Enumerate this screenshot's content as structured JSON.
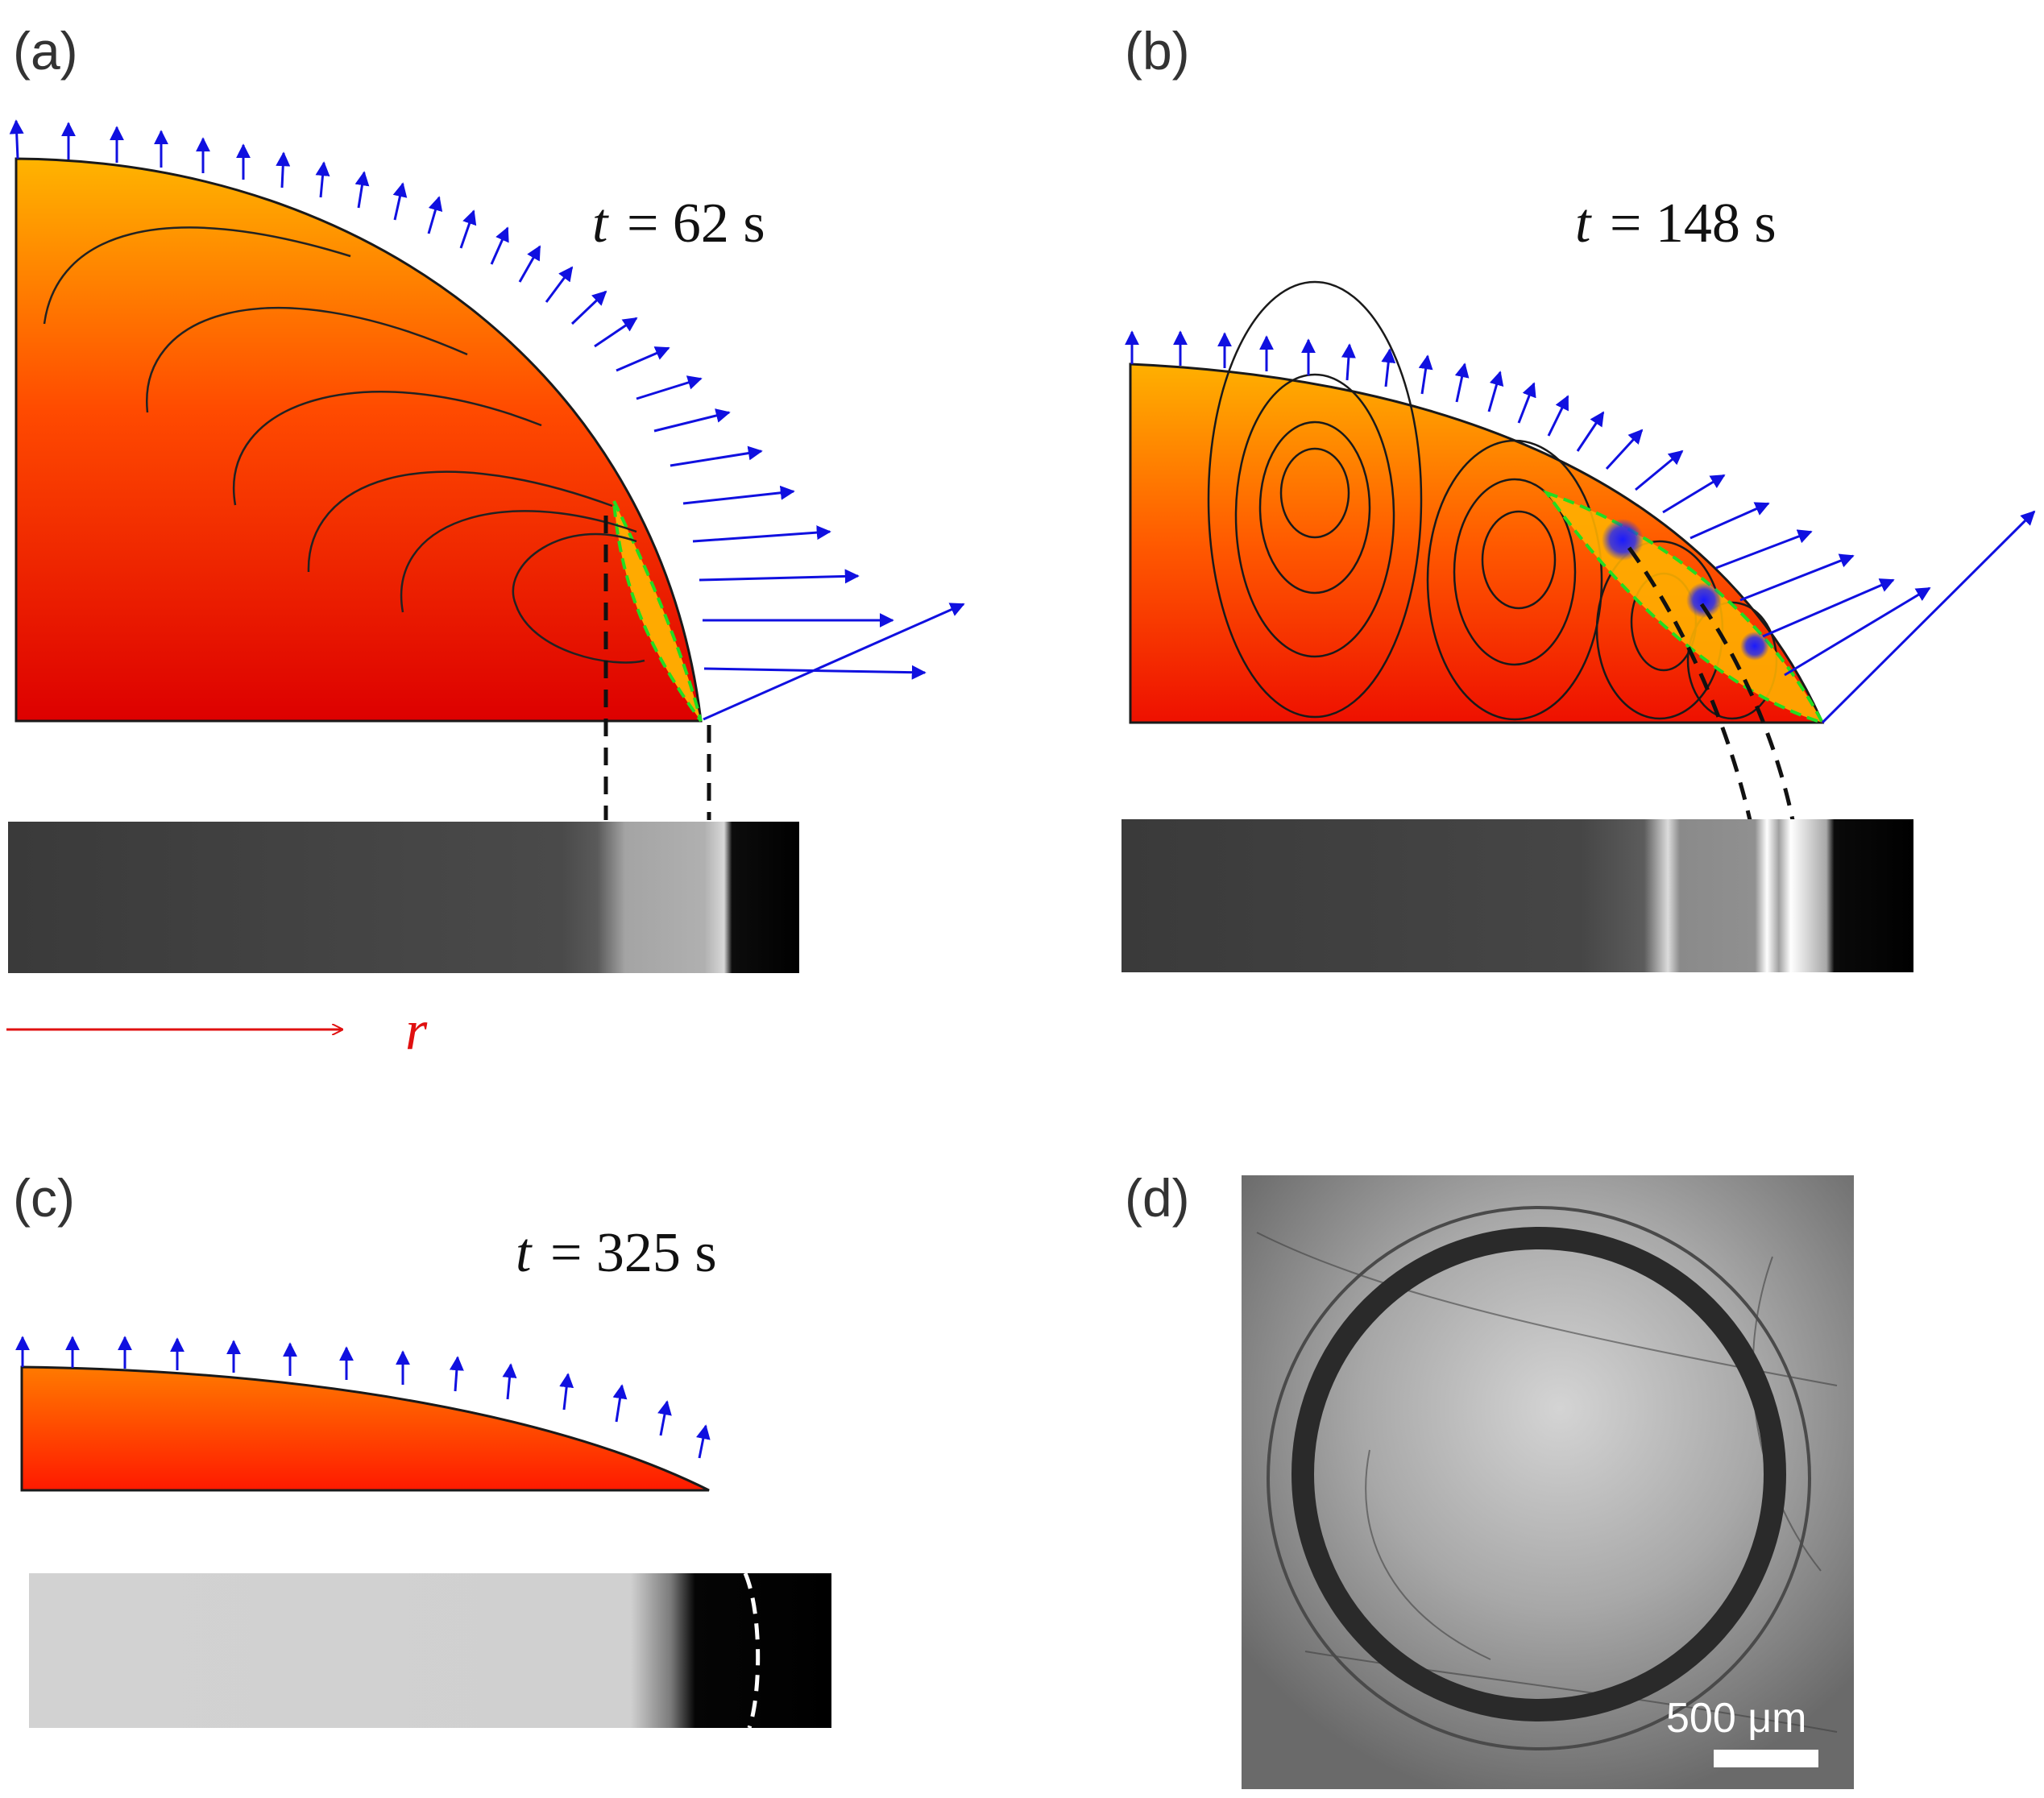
{
  "panels": [
    {
      "label": "(a)",
      "time_var": "t",
      "time_value": "= 62 s"
    },
    {
      "label": "(b)",
      "time_var": "t",
      "time_value": "= 148 s"
    },
    {
      "label": "(c)",
      "time_var": "t",
      "time_value": "= 325 s"
    },
    {
      "label": "(d)",
      "scale_bar": "500 μm"
    }
  ],
  "axis": {
    "r": "r"
  },
  "colors": {
    "droplet_top": "#ffb400",
    "droplet_bottom": "#e00000",
    "flux_arrow": "#1010e0",
    "deposit_edge": "#22dd22",
    "axis_arrow": "#e01010"
  }
}
